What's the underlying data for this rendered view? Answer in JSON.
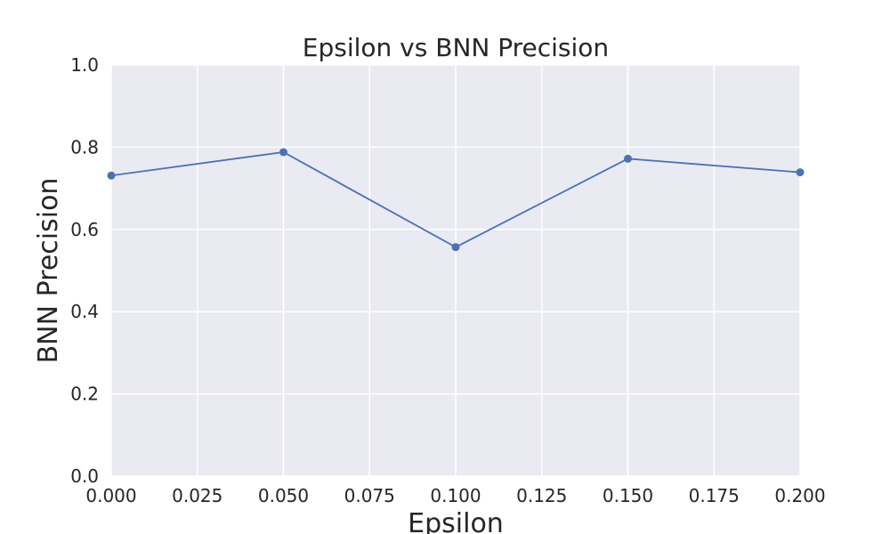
{
  "chart_data": {
    "type": "line",
    "title": "Epsilon vs BNN Precision",
    "xlabel": "Epsilon",
    "ylabel": "BNN Precision",
    "xlim": [
      0.0,
      0.2
    ],
    "ylim": [
      0.0,
      1.0
    ],
    "x_ticks": [
      "0.000",
      "0.025",
      "0.050",
      "0.075",
      "0.100",
      "0.125",
      "0.150",
      "0.175",
      "0.200"
    ],
    "y_ticks": [
      "0.0",
      "0.2",
      "0.4",
      "0.6",
      "0.8",
      "1.0"
    ],
    "grid": true,
    "series": [
      {
        "x": [
          0.0,
          0.05,
          0.1,
          0.15,
          0.2
        ],
        "y": [
          0.731,
          0.788,
          0.557,
          0.772,
          0.739
        ],
        "color": "#4c72b0",
        "marker": "circle"
      }
    ],
    "plot_background": "#eaeaf2",
    "grid_color": "#ffffff"
  }
}
